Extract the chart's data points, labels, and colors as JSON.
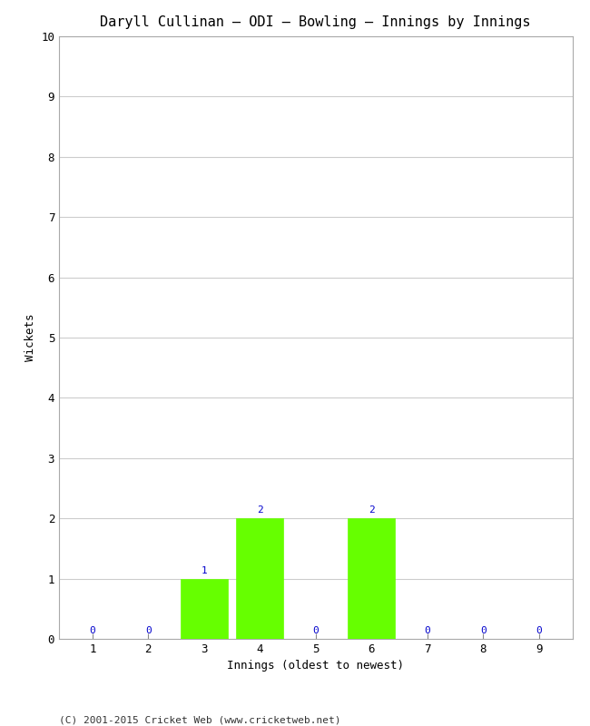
{
  "title": "Daryll Cullinan – ODI – Bowling – Innings by Innings",
  "xlabel": "Innings (oldest to newest)",
  "ylabel": "Wickets",
  "categories": [
    1,
    2,
    3,
    4,
    5,
    6,
    7,
    8,
    9
  ],
  "values": [
    0,
    0,
    1,
    2,
    0,
    2,
    0,
    0,
    0
  ],
  "bar_color": "#66ff00",
  "bar_edge_color": "#66ff00",
  "label_color": "#0000cc",
  "ylim": [
    0,
    10
  ],
  "yticks": [
    0,
    1,
    2,
    3,
    4,
    5,
    6,
    7,
    8,
    9,
    10
  ],
  "xticks": [
    1,
    2,
    3,
    4,
    5,
    6,
    7,
    8,
    9
  ],
  "background_color": "#ffffff",
  "grid_color": "#cccccc",
  "footer": "(C) 2001-2015 Cricket Web (www.cricketweb.net)",
  "title_fontsize": 11,
  "axis_label_fontsize": 9,
  "tick_fontsize": 9,
  "annotation_fontsize": 8,
  "footer_fontsize": 8
}
